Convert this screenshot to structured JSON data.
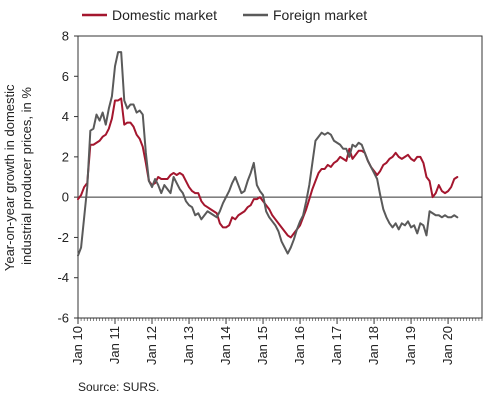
{
  "chart_data": {
    "type": "line",
    "ylabel_lines": [
      "Year-on-year growth in domestic",
      "industrial producer prices, in %"
    ],
    "ylim": [
      -6,
      8
    ],
    "yticks": [
      -6,
      -4,
      -2,
      0,
      2,
      4,
      6,
      8
    ],
    "xlim": [
      0,
      131
    ],
    "xtick_labels": [
      "Jan 10",
      "Jan 11",
      "Jan 12",
      "Jan 13",
      "Jan 14",
      "Jan 15",
      "Jan 16",
      "Jan 17",
      "Jan 18",
      "Jan 19",
      "Jan 20"
    ],
    "legend_position": "top",
    "grid": false,
    "source": "Source: SURS.",
    "series": [
      {
        "name": "Domestic market",
        "color": "#a4162e",
        "values": [
          -0.1,
          0.1,
          0.5,
          0.7,
          2.6,
          2.6,
          2.7,
          2.8,
          3.0,
          3.1,
          3.4,
          3.9,
          4.8,
          4.8,
          4.9,
          3.6,
          3.7,
          3.7,
          3.5,
          3.1,
          2.9,
          2.5,
          1.7,
          0.8,
          0.6,
          0.7,
          1.0,
          0.9,
          0.9,
          0.9,
          1.1,
          1.2,
          1.1,
          1.2,
          1.1,
          0.8,
          0.5,
          0.3,
          0.2,
          0.2,
          -0.2,
          -0.4,
          -0.5,
          -0.6,
          -0.7,
          -0.8,
          -1.3,
          -1.5,
          -1.5,
          -1.4,
          -1.0,
          -1.1,
          -0.9,
          -0.8,
          -0.7,
          -0.5,
          -0.4,
          -0.1,
          -0.1,
          0.0,
          -0.2,
          -0.4,
          -0.6,
          -0.9,
          -1.1,
          -1.3,
          -1.5,
          -1.7,
          -1.9,
          -2.0,
          -1.8,
          -1.6,
          -1.4,
          -1.0,
          -0.6,
          -0.1,
          0.4,
          0.8,
          1.2,
          1.4,
          1.4,
          1.6,
          1.5,
          1.7,
          1.8,
          2.0,
          1.9,
          1.8,
          2.4,
          1.9,
          2.1,
          2.3,
          2.3,
          2.2,
          1.8,
          1.5,
          1.3,
          1.1,
          1.3,
          1.6,
          1.7,
          1.9,
          2.0,
          2.2,
          2.0,
          1.9,
          2.0,
          2.1,
          1.9,
          1.8,
          2.0,
          2.0,
          1.7,
          1.0,
          0.8,
          0.0,
          0.2,
          0.6,
          0.3,
          0.2,
          0.3,
          0.5,
          0.9,
          1.0
        ]
      },
      {
        "name": "Foreign market",
        "color": "#5a5a5a",
        "values": [
          -2.9,
          -2.5,
          -1.0,
          0.5,
          3.3,
          3.4,
          4.1,
          3.8,
          4.2,
          3.6,
          4.4,
          5.0,
          6.5,
          7.2,
          7.2,
          4.8,
          4.4,
          4.6,
          4.6,
          4.2,
          4.3,
          4.1,
          2.2,
          0.8,
          0.5,
          0.9,
          0.6,
          0.2,
          0.6,
          0.4,
          0.2,
          1.0,
          0.7,
          0.4,
          0.2,
          -0.2,
          -0.4,
          -0.5,
          -0.9,
          -0.8,
          -1.1,
          -0.9,
          -0.7,
          -0.8,
          -0.9,
          -1.0,
          -0.7,
          -0.3,
          0.0,
          0.3,
          0.7,
          1.0,
          0.6,
          0.2,
          0.3,
          0.8,
          1.2,
          1.7,
          0.6,
          0.3,
          0.1,
          -0.7,
          -1.0,
          -1.2,
          -1.4,
          -1.7,
          -2.2,
          -2.5,
          -2.8,
          -2.5,
          -2.1,
          -1.6,
          -1.2,
          -0.9,
          -0.2,
          0.6,
          1.7,
          2.8,
          3.0,
          3.2,
          3.1,
          3.2,
          3.1,
          2.8,
          2.7,
          2.6,
          2.4,
          2.4,
          2.0,
          2.6,
          2.5,
          2.7,
          2.6,
          2.2,
          1.8,
          1.5,
          1.2,
          0.9,
          0.1,
          -0.6,
          -1.0,
          -1.3,
          -1.5,
          -1.3,
          -1.6,
          -1.3,
          -1.4,
          -1.2,
          -1.5,
          -1.4,
          -1.8,
          -1.3,
          -1.4,
          -1.9,
          -0.7,
          -0.8,
          -0.9,
          -0.9,
          -1.0,
          -0.9,
          -1.0,
          -1.0,
          -0.9,
          -1.0
        ]
      }
    ]
  }
}
